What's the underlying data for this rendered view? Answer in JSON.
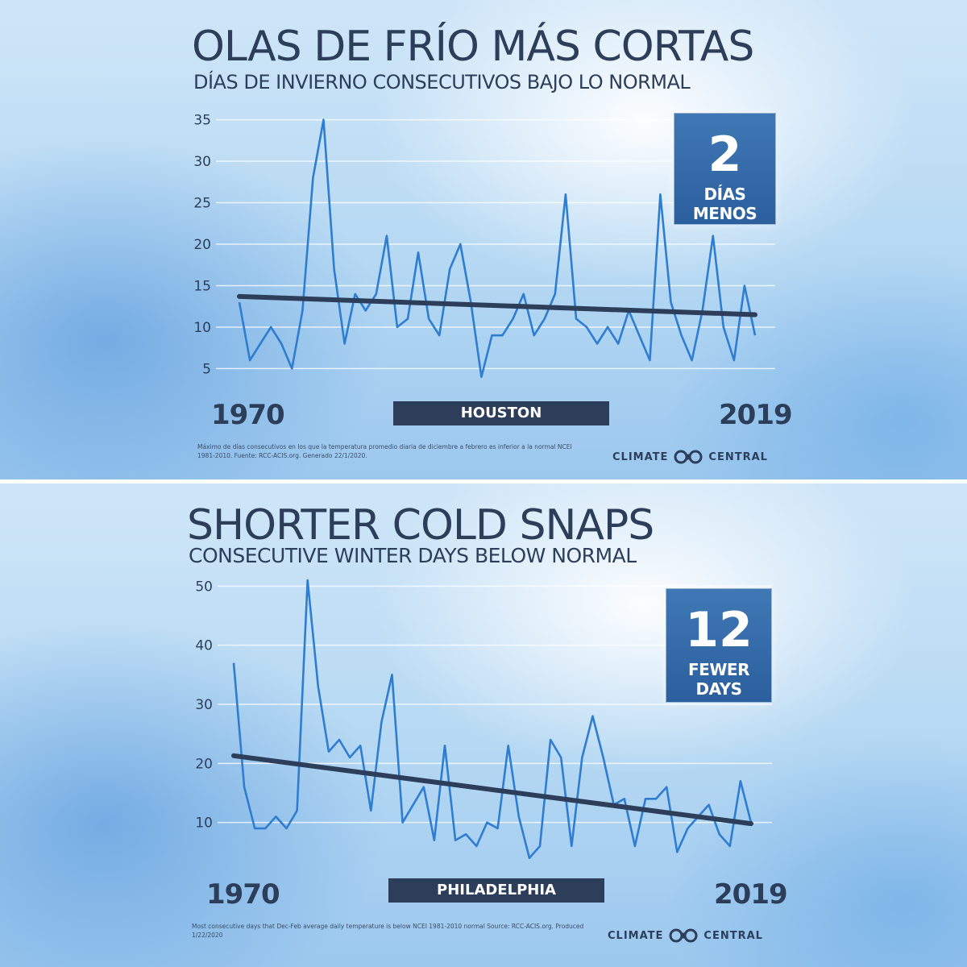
{
  "chart_data": [
    {
      "type": "line",
      "title": "OLAS DE FRÍO MÁS CORTAS",
      "subtitle": "DÍAS DE INVIERNO CONSECUTIVOS BAJO LO NORMAL",
      "x_start_label": "1970",
      "x_end_label": "2019",
      "location": "HOUSTON",
      "badge_number": "2",
      "badge_text": "DÍAS MENOS",
      "yticks": [
        "35",
        "30",
        "25",
        "20",
        "15",
        "10",
        "5"
      ],
      "ylim": [
        3,
        37
      ],
      "xlim": [
        1970,
        2019
      ],
      "x": [
        1970,
        1971,
        1972,
        1973,
        1974,
        1975,
        1976,
        1977,
        1978,
        1979,
        1980,
        1981,
        1982,
        1983,
        1984,
        1985,
        1986,
        1987,
        1988,
        1989,
        1990,
        1991,
        1992,
        1993,
        1994,
        1995,
        1996,
        1997,
        1998,
        1999,
        2000,
        2001,
        2002,
        2003,
        2004,
        2005,
        2006,
        2007,
        2008,
        2009,
        2010,
        2011,
        2012,
        2013,
        2014,
        2015,
        2016,
        2017,
        2018,
        2019
      ],
      "values": [
        13,
        6,
        8,
        10,
        8,
        5,
        12,
        28,
        35,
        17,
        8,
        14,
        12,
        14,
        21,
        10,
        11,
        19,
        11,
        9,
        17,
        20,
        13,
        4,
        9,
        9,
        11,
        14,
        9,
        11,
        14,
        26,
        11,
        10,
        8,
        10,
        8,
        12,
        9,
        6,
        26,
        13,
        9,
        6,
        12,
        21,
        10,
        6,
        15,
        9
      ],
      "trend": [
        13.7,
        11.5
      ],
      "grid": true,
      "footnote": "Máximo de días consecutivos en los que la temperatura promedio diaria de diciembre a febrero es inferior a la normal NCEI 1981-2010. Fuente: RCC-ACIS.org. Generado 22/1/2020.",
      "brand_left": "CLIMATE",
      "brand_right": "CENTRAL"
    },
    {
      "type": "line",
      "title": "SHORTER COLD SNAPS",
      "subtitle": "CONSECUTIVE WINTER DAYS BELOW NORMAL",
      "x_start_label": "1970",
      "x_end_label": "2019",
      "location": "PHILADELPHIA",
      "badge_number": "12",
      "badge_text": "FEWER DAYS",
      "yticks": [
        "50",
        "40",
        "30",
        "20",
        "10"
      ],
      "ylim": [
        3,
        51
      ],
      "xlim": [
        1970,
        2019
      ],
      "x": [
        1970,
        1971,
        1972,
        1973,
        1974,
        1975,
        1976,
        1977,
        1978,
        1979,
        1980,
        1981,
        1982,
        1983,
        1984,
        1985,
        1986,
        1987,
        1988,
        1989,
        1990,
        1991,
        1992,
        1993,
        1994,
        1995,
        1996,
        1997,
        1998,
        1999,
        2000,
        2001,
        2002,
        2003,
        2004,
        2005,
        2006,
        2007,
        2008,
        2009,
        2010,
        2011,
        2012,
        2013,
        2014,
        2015,
        2016,
        2017,
        2018,
        2019
      ],
      "values": [
        37,
        16,
        9,
        9,
        11,
        9,
        12,
        51,
        33,
        22,
        24,
        21,
        23,
        12,
        27,
        35,
        10,
        13,
        16,
        7,
        23,
        7,
        8,
        6,
        10,
        9,
        23,
        11,
        4,
        6,
        24,
        21,
        6,
        21,
        28,
        21,
        13,
        14,
        6,
        14,
        14,
        16,
        5,
        9,
        11,
        13,
        8,
        6,
        17,
        10
      ],
      "trend": [
        21.3,
        9.8
      ],
      "grid": true,
      "footnote": "Most consecutive days that Dec-Feb average daily temperature is below NCEI 1981-2010 normal Source: RCC-ACIS.org. Produced 1/22/2020",
      "brand_left": "CLIMATE",
      "brand_right": "CENTRAL"
    }
  ],
  "colors": {
    "text_dark": "#2c3e5a",
    "series_line": "#2f7dd1",
    "trend_line": "#2c3e5a",
    "badge_bg": "#336aa8",
    "grid": "#ffffff"
  }
}
